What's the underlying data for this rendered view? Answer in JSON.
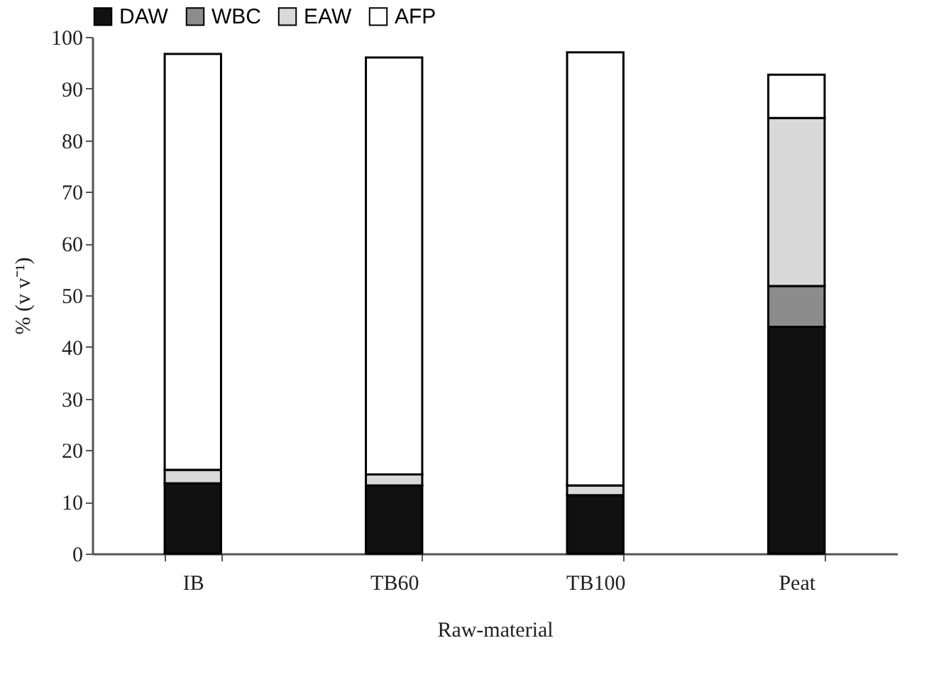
{
  "chart_data": {
    "type": "bar",
    "stacked": true,
    "xlabel": "Raw-material",
    "ylabel": "% (v v⁻¹)",
    "categories": [
      "IB",
      "TB60",
      "TB100",
      "Peat"
    ],
    "series": [
      {
        "name": "DAW",
        "color": "#111111",
        "values": [
          13.6,
          13.2,
          11.3,
          43.9
        ]
      },
      {
        "name": "WBC",
        "color": "#8c8c8c",
        "values": [
          0,
          0,
          0,
          7.9
        ]
      },
      {
        "name": "EAW",
        "color": "#d9d9d9",
        "values": [
          2.6,
          2.1,
          1.9,
          32.5
        ]
      },
      {
        "name": "AFP",
        "color": "#ffffff",
        "values": [
          80.5,
          80.7,
          83.8,
          8.4
        ]
      }
    ],
    "ylim": [
      0,
      100
    ],
    "yticks": [
      0,
      10,
      20,
      30,
      40,
      50,
      60,
      70,
      80,
      90,
      100
    ],
    "grid": false,
    "legend": "top"
  }
}
